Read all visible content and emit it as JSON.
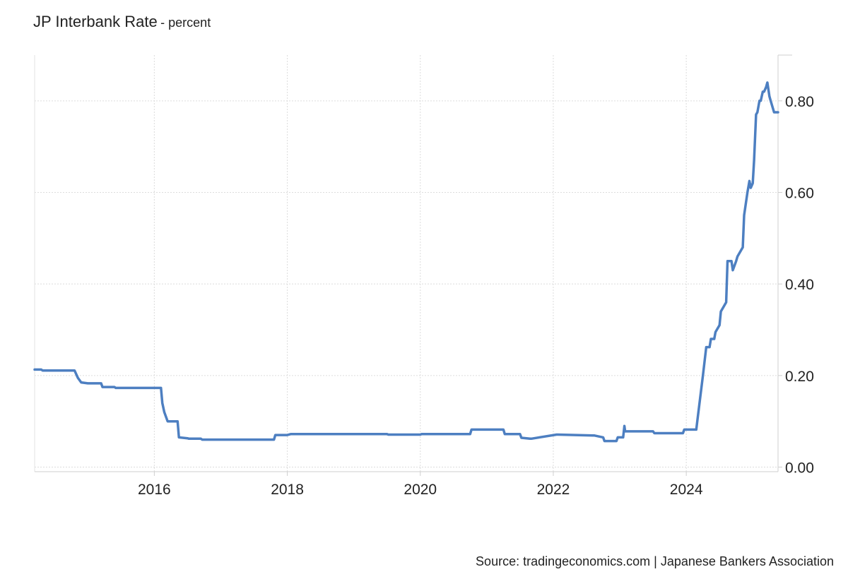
{
  "chart_data": {
    "type": "line",
    "title": "JP Interbank Rate",
    "subtitle": "- percent",
    "xlabel": "",
    "ylabel": "",
    "x_ticks": [
      "2016",
      "2018",
      "2020",
      "2022",
      "2024"
    ],
    "y_ticks": [
      "0.00",
      "0.20",
      "0.40",
      "0.60",
      "0.80"
    ],
    "xlim": [
      2014.2,
      2025.38
    ],
    "ylim": [
      -0.01,
      0.9
    ],
    "grid": true,
    "legend": "none",
    "line_color": "#4d7fc1",
    "series": [
      {
        "x": [
          2014.2,
          2014.3,
          2014.32,
          2014.8,
          2014.85,
          2014.9,
          2015.0,
          2015.2,
          2015.22,
          2015.4,
          2015.42,
          2016.1,
          2016.12,
          2016.15,
          2016.2,
          2016.23,
          2016.35,
          2016.37,
          2016.5,
          2016.52,
          2016.7,
          2016.72,
          2017.8,
          2017.82,
          2018.0,
          2018.05,
          2019.5,
          2019.52,
          2020.0,
          2020.02,
          2020.75,
          2020.77,
          2021.25,
          2021.27,
          2021.5,
          2021.52,
          2021.65,
          2021.67,
          2022.05,
          2022.07,
          2022.6,
          2022.62,
          2022.75,
          2022.77,
          2022.95,
          2022.97,
          2023.05,
          2023.07,
          2023.08,
          2023.1,
          2023.5,
          2023.52,
          2023.95,
          2023.97,
          2024.15,
          2024.17,
          2024.25,
          2024.3,
          2024.35,
          2024.37,
          2024.42,
          2024.44,
          2024.5,
          2024.52,
          2024.6,
          2024.62,
          2024.68,
          2024.7,
          2024.75,
          2024.77,
          2024.85,
          2024.87,
          2024.92,
          2024.95,
          2024.97,
          2025.0,
          2025.02,
          2025.05,
          2025.07,
          2025.1,
          2025.12,
          2025.15,
          2025.17,
          2025.2,
          2025.22,
          2025.25,
          2025.27,
          2025.3,
          2025.32,
          2025.35,
          2025.38
        ],
        "y": [
          0.213,
          0.213,
          0.211,
          0.211,
          0.195,
          0.185,
          0.183,
          0.183,
          0.175,
          0.175,
          0.173,
          0.173,
          0.14,
          0.12,
          0.1,
          0.1,
          0.1,
          0.065,
          0.063,
          0.062,
          0.062,
          0.06,
          0.06,
          0.07,
          0.07,
          0.072,
          0.072,
          0.071,
          0.071,
          0.072,
          0.072,
          0.082,
          0.082,
          0.072,
          0.072,
          0.064,
          0.062,
          0.062,
          0.071,
          0.071,
          0.069,
          0.069,
          0.065,
          0.057,
          0.057,
          0.065,
          0.065,
          0.09,
          0.078,
          0.078,
          0.078,
          0.074,
          0.074,
          0.082,
          0.082,
          0.105,
          0.2,
          0.262,
          0.262,
          0.28,
          0.28,
          0.295,
          0.31,
          0.34,
          0.36,
          0.45,
          0.45,
          0.43,
          0.45,
          0.46,
          0.48,
          0.55,
          0.6,
          0.625,
          0.61,
          0.62,
          0.67,
          0.77,
          0.775,
          0.8,
          0.8,
          0.82,
          0.82,
          0.83,
          0.84,
          0.81,
          0.8,
          0.785,
          0.775,
          0.775,
          0.775
        ]
      }
    ]
  },
  "source": "Source: tradingeconomics.com | Japanese Bankers Association"
}
